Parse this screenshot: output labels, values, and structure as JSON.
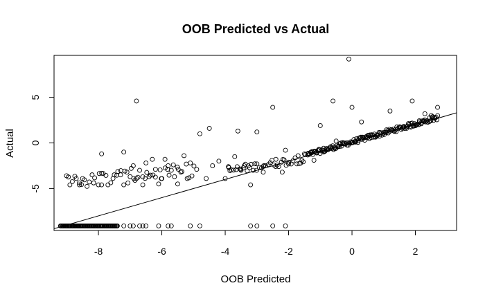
{
  "chart_data": {
    "type": "scatter",
    "title": "OOB Predicted vs Actual",
    "xlabel": "OOB Predicted",
    "ylabel": "Actual",
    "xlim": [
      -9.4,
      3.3
    ],
    "ylim": [
      -9.6,
      9.6
    ],
    "xticks": [
      -8,
      -6,
      -4,
      -2,
      0,
      2
    ],
    "yticks": [
      -5,
      0,
      5
    ],
    "grid": false,
    "legend": "none",
    "reference_line": {
      "intercept": 0,
      "slope": 1
    },
    "clusters": [
      {
        "x_from": -9.2,
        "x_to": -7.4,
        "y": -9.1,
        "count": 90
      },
      {
        "x_from": -1.4,
        "x_to": 2.7,
        "slope": 1.0,
        "y_offset": 0.1,
        "spread": 0.25,
        "count": 165
      },
      {
        "x_from": -3.9,
        "x_to": -1.4,
        "slope": 0.55,
        "y_offset": -0.9,
        "spread": 0.45,
        "count": 45
      },
      {
        "x_from": -9.0,
        "x_to": -5.0,
        "slope": 0.3,
        "y_offset": -1.5,
        "spread": 0.8,
        "count": 45
      }
    ],
    "points": [
      [
        -8.9,
        -4.6
      ],
      [
        -8.7,
        -3.9
      ],
      [
        -8.6,
        -4.6
      ],
      [
        -8.5,
        -3.9
      ],
      [
        -8.2,
        -3.5
      ],
      [
        -8.0,
        -4.6
      ],
      [
        -7.9,
        -4.6
      ],
      [
        -7.9,
        -1.2
      ],
      [
        -7.7,
        -4.6
      ],
      [
        -7.5,
        -3.5
      ],
      [
        -7.3,
        -3.5
      ],
      [
        -7.2,
        -4.6
      ],
      [
        -7.2,
        -1.0
      ],
      [
        -7.1,
        -3.2
      ],
      [
        -7.0,
        -3.7
      ],
      [
        -6.9,
        -2.5
      ],
      [
        -6.8,
        -3.9
      ],
      [
        -6.8,
        4.6
      ],
      [
        -6.7,
        -3.0
      ],
      [
        -6.6,
        -4.6
      ],
      [
        -6.5,
        -2.2
      ],
      [
        -6.4,
        -3.7
      ],
      [
        -6.3,
        -1.8
      ],
      [
        -6.2,
        -2.9
      ],
      [
        -6.1,
        -4.5
      ],
      [
        -6.0,
        -3.9
      ],
      [
        -5.9,
        -1.8
      ],
      [
        -5.8,
        -2.5
      ],
      [
        -5.7,
        -3.0
      ],
      [
        -5.6,
        -3.7
      ],
      [
        -5.5,
        -4.5
      ],
      [
        -5.4,
        -3.2
      ],
      [
        -5.3,
        -1.4
      ],
      [
        -5.2,
        -3.9
      ],
      [
        -5.1,
        -2.2
      ],
      [
        -4.9,
        -2.9
      ],
      [
        -4.8,
        1.0
      ],
      [
        -4.6,
        -3.9
      ],
      [
        -4.5,
        1.6
      ],
      [
        -4.4,
        -2.5
      ],
      [
        -4.2,
        -2.0
      ],
      [
        -4.0,
        -3.9
      ],
      [
        -3.9,
        -2.6
      ],
      [
        -3.7,
        -1.5
      ],
      [
        -3.6,
        1.3
      ],
      [
        -3.5,
        -3.0
      ],
      [
        -3.4,
        -2.5
      ],
      [
        -3.2,
        -4.6
      ],
      [
        -3.0,
        1.2
      ],
      [
        -3.0,
        -2.3
      ],
      [
        -2.8,
        -3.2
      ],
      [
        -2.5,
        3.9
      ],
      [
        -2.4,
        -1.8
      ],
      [
        -2.2,
        -3.2
      ],
      [
        -2.1,
        -0.8
      ],
      [
        -1.7,
        -1.4
      ],
      [
        -1.5,
        -1.2
      ],
      [
        -1.2,
        -1.9
      ],
      [
        -1.0,
        1.9
      ],
      [
        -0.9,
        -1.0
      ],
      [
        -0.6,
        4.6
      ],
      [
        -0.5,
        0.2
      ],
      [
        -0.1,
        9.2
      ],
      [
        0.0,
        3.9
      ],
      [
        0.3,
        2.3
      ],
      [
        0.5,
        0.6
      ],
      [
        1.2,
        3.5
      ],
      [
        1.8,
        2.0
      ],
      [
        1.9,
        4.6
      ],
      [
        2.5,
        3.0
      ],
      [
        2.7,
        3.9
      ],
      [
        2.3,
        3.2
      ],
      [
        -3.0,
        -9.1
      ],
      [
        -3.2,
        -9.1
      ],
      [
        -2.5,
        -9.1
      ],
      [
        -2.1,
        -9.1
      ],
      [
        -5.1,
        -9.1
      ],
      [
        -4.8,
        -9.1
      ],
      [
        -5.8,
        -9.1
      ],
      [
        -5.7,
        -9.1
      ],
      [
        -6.6,
        -9.1
      ],
      [
        -6.5,
        -9.1
      ],
      [
        -6.1,
        -9.1
      ],
      [
        -7.0,
        -9.1
      ],
      [
        -6.9,
        -9.1
      ],
      [
        -6.7,
        -9.1
      ],
      [
        -7.2,
        -9.1
      ]
    ]
  }
}
